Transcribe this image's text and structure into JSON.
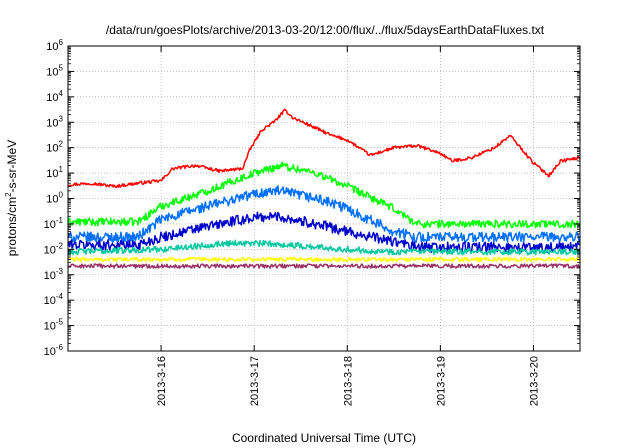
{
  "chart_data": {
    "type": "line",
    "title": "/data/run/goesPlots/archive/2013-03-20/12:00/flux/../flux/5daysEarthDataFluxes.txt",
    "xlabel": "Coordinated Universal Time (UTC)",
    "ylabel": {
      "prefix": "protons/cm",
      "superscript": "2",
      "suffix": "-s-sr-MeV"
    },
    "y_scale": "log",
    "ylim_exponents": [
      -6,
      6
    ],
    "y_tick_labels": [
      {
        "base": "10",
        "exp": "6"
      },
      {
        "base": "10",
        "exp": "5"
      },
      {
        "base": "10",
        "exp": "4"
      },
      {
        "base": "10",
        "exp": "3"
      },
      {
        "base": "10",
        "exp": "2"
      },
      {
        "base": "10",
        "exp": "1"
      },
      {
        "base": "10",
        "exp": "0"
      },
      {
        "base": "10",
        "exp": "-1"
      },
      {
        "base": "10",
        "exp": "-2"
      },
      {
        "base": "10",
        "exp": "-3"
      },
      {
        "base": "10",
        "exp": "-4"
      },
      {
        "base": "10",
        "exp": "-5"
      },
      {
        "base": "10",
        "exp": "-6"
      }
    ],
    "xlim": [
      "2013-03-15 00:00",
      "2013-03-20 12:00"
    ],
    "x_tick_labels": [
      "2013-3-16",
      "2013-3-17",
      "2013-3-18",
      "2013-3-19",
      "2013-3-20"
    ],
    "x_ticks": [
      "2013-03-16",
      "2013-03-17",
      "2013-03-18",
      "2013-03-19",
      "2013-03-20"
    ],
    "grid": true,
    "grid_style": "dotted",
    "series": [
      {
        "color": "#ff0000",
        "noise": 0.06,
        "points": [
          [
            "2013-03-15 00:00",
            3.5
          ],
          [
            "2013-03-15 06:00",
            4.0
          ],
          [
            "2013-03-15 12:00",
            3.0
          ],
          [
            "2013-03-15 18:00",
            4.0
          ],
          [
            "2013-03-16 00:00",
            5.0
          ],
          [
            "2013-03-16 03:00",
            15
          ],
          [
            "2013-03-16 09:00",
            20
          ],
          [
            "2013-03-16 15:00",
            12
          ],
          [
            "2013-03-16 21:00",
            15
          ],
          [
            "2013-03-16 23:00",
            90
          ],
          [
            "2013-03-17 02:00",
            500
          ],
          [
            "2013-03-17 05:00",
            1000
          ],
          [
            "2013-03-17 08:00",
            3000
          ],
          [
            "2013-03-17 10:00",
            1500
          ],
          [
            "2013-03-17 14:00",
            800
          ],
          [
            "2013-03-17 20:00",
            300
          ],
          [
            "2013-03-18 00:00",
            200
          ],
          [
            "2013-03-18 06:00",
            50
          ],
          [
            "2013-03-18 12:00",
            100
          ],
          [
            "2013-03-18 18:00",
            120
          ],
          [
            "2013-03-19 00:00",
            60
          ],
          [
            "2013-03-19 03:00",
            30
          ],
          [
            "2013-03-19 08:00",
            40
          ],
          [
            "2013-03-19 14:00",
            100
          ],
          [
            "2013-03-19 18:00",
            300
          ],
          [
            "2013-03-20 00:00",
            25
          ],
          [
            "2013-03-20 04:00",
            8
          ],
          [
            "2013-03-20 07:00",
            30
          ],
          [
            "2013-03-20 12:00",
            40
          ]
        ]
      },
      {
        "color": "#00ff00",
        "noise": 0.15,
        "points": [
          [
            "2013-03-15 00:00",
            0.12
          ],
          [
            "2013-03-15 18:00",
            0.12
          ],
          [
            "2013-03-16 00:00",
            0.5
          ],
          [
            "2013-03-16 12:00",
            2.0
          ],
          [
            "2013-03-17 00:00",
            10
          ],
          [
            "2013-03-17 07:00",
            20
          ],
          [
            "2013-03-17 16:00",
            10
          ],
          [
            "2013-03-18 00:00",
            3
          ],
          [
            "2013-03-18 12:00",
            0.4
          ],
          [
            "2013-03-18 18:00",
            0.1
          ],
          [
            "2013-03-20 12:00",
            0.1
          ]
        ]
      },
      {
        "color": "#0070ff",
        "noise": 0.2,
        "points": [
          [
            "2013-03-15 00:00",
            0.03
          ],
          [
            "2013-03-15 18:00",
            0.03
          ],
          [
            "2013-03-16 00:00",
            0.15
          ],
          [
            "2013-03-16 12:00",
            0.5
          ],
          [
            "2013-03-17 00:00",
            1.5
          ],
          [
            "2013-03-17 06:00",
            2.0
          ],
          [
            "2013-03-17 16:00",
            1.0
          ],
          [
            "2013-03-18 00:00",
            0.4
          ],
          [
            "2013-03-18 12:00",
            0.05
          ],
          [
            "2013-03-18 18:00",
            0.03
          ],
          [
            "2013-03-20 12:00",
            0.03
          ]
        ]
      },
      {
        "color": "#0000cc",
        "noise": 0.2,
        "points": [
          [
            "2013-03-15 00:00",
            0.015
          ],
          [
            "2013-03-15 18:00",
            0.015
          ],
          [
            "2013-03-16 00:00",
            0.03
          ],
          [
            "2013-03-16 12:00",
            0.08
          ],
          [
            "2013-03-17 00:00",
            0.18
          ],
          [
            "2013-03-17 06:00",
            0.2
          ],
          [
            "2013-03-17 16:00",
            0.1
          ],
          [
            "2013-03-18 00:00",
            0.05
          ],
          [
            "2013-03-18 12:00",
            0.02
          ],
          [
            "2013-03-18 18:00",
            0.012
          ],
          [
            "2013-03-20 12:00",
            0.012
          ]
        ]
      },
      {
        "color": "#00c8a0",
        "noise": 0.12,
        "points": [
          [
            "2013-03-15 00:00",
            0.008
          ],
          [
            "2013-03-16 00:00",
            0.01
          ],
          [
            "2013-03-16 18:00",
            0.018
          ],
          [
            "2013-03-17 06:00",
            0.016
          ],
          [
            "2013-03-18 00:00",
            0.01
          ],
          [
            "2013-03-18 12:00",
            0.008
          ],
          [
            "2013-03-20 12:00",
            0.008
          ]
        ]
      },
      {
        "color": "#ffff00",
        "noise": 0.08,
        "points": [
          [
            "2013-03-15 00:00",
            0.004
          ],
          [
            "2013-03-20 12:00",
            0.004
          ]
        ]
      },
      {
        "color": "#993366",
        "noise": 0.08,
        "points": [
          [
            "2013-03-15 00:00",
            0.0022
          ],
          [
            "2013-03-20 12:00",
            0.0022
          ]
        ]
      }
    ]
  }
}
